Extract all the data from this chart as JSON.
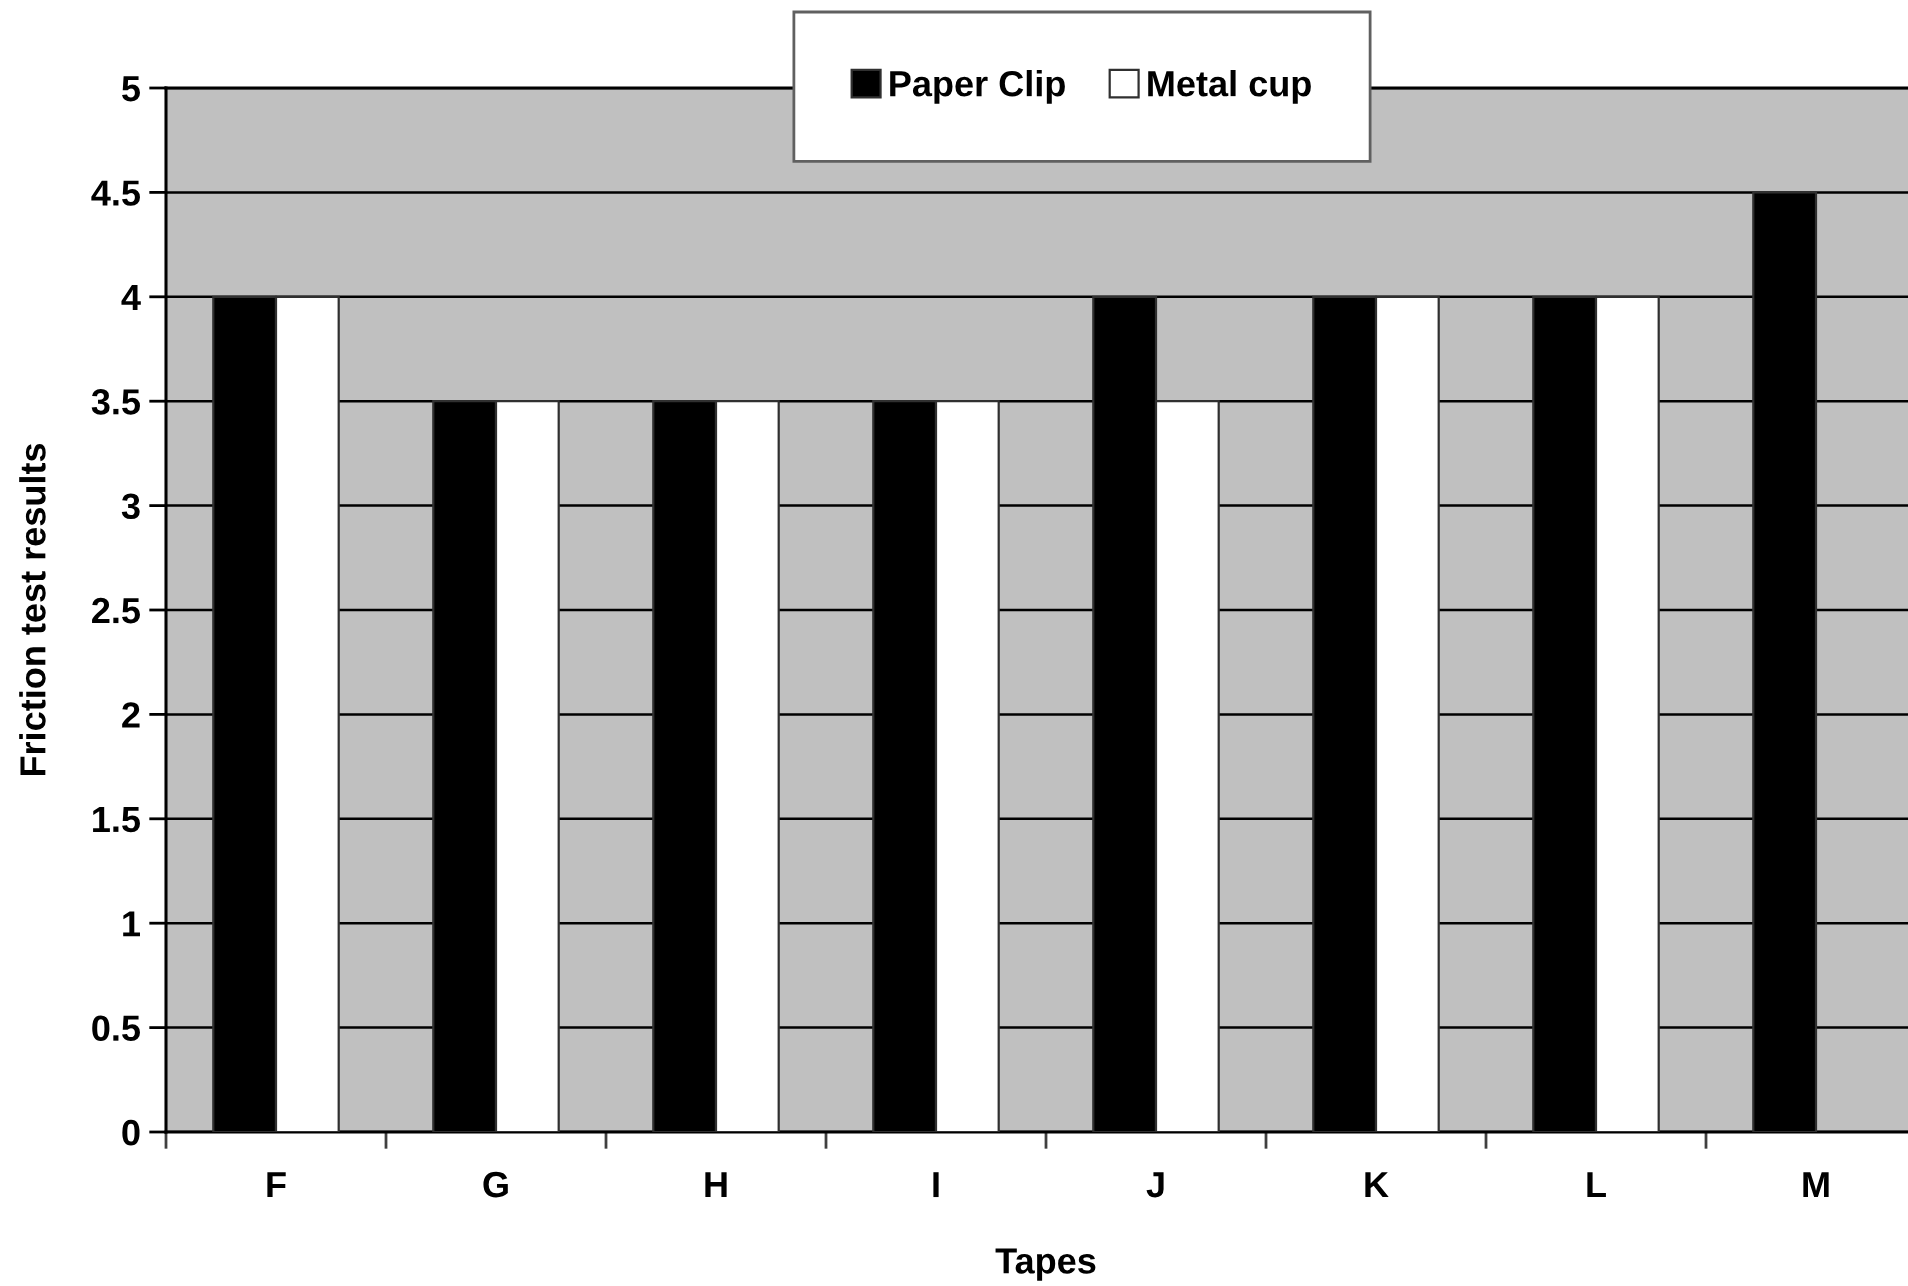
{
  "chart_data": {
    "type": "bar",
    "xlabel": "Tapes",
    "ylabel": "Friction test results",
    "categories": [
      "F",
      "G",
      "H",
      "I",
      "J",
      "K",
      "L",
      "M"
    ],
    "series": [
      {
        "name": "Paper Clip",
        "color": "#000000",
        "values": [
          4,
          3.5,
          3.5,
          3.5,
          4,
          4,
          4,
          4.5
        ]
      },
      {
        "name": "Metal cup",
        "color": "#ffffff",
        "values": [
          4,
          3.5,
          3.5,
          3.5,
          3.5,
          4,
          4,
          null
        ]
      }
    ],
    "ylim": [
      0,
      5
    ],
    "yticks": [
      0,
      0.5,
      1,
      1.5,
      2,
      2.5,
      3,
      3.5,
      4,
      4.5,
      5
    ],
    "grid": "y",
    "legend": "top"
  }
}
